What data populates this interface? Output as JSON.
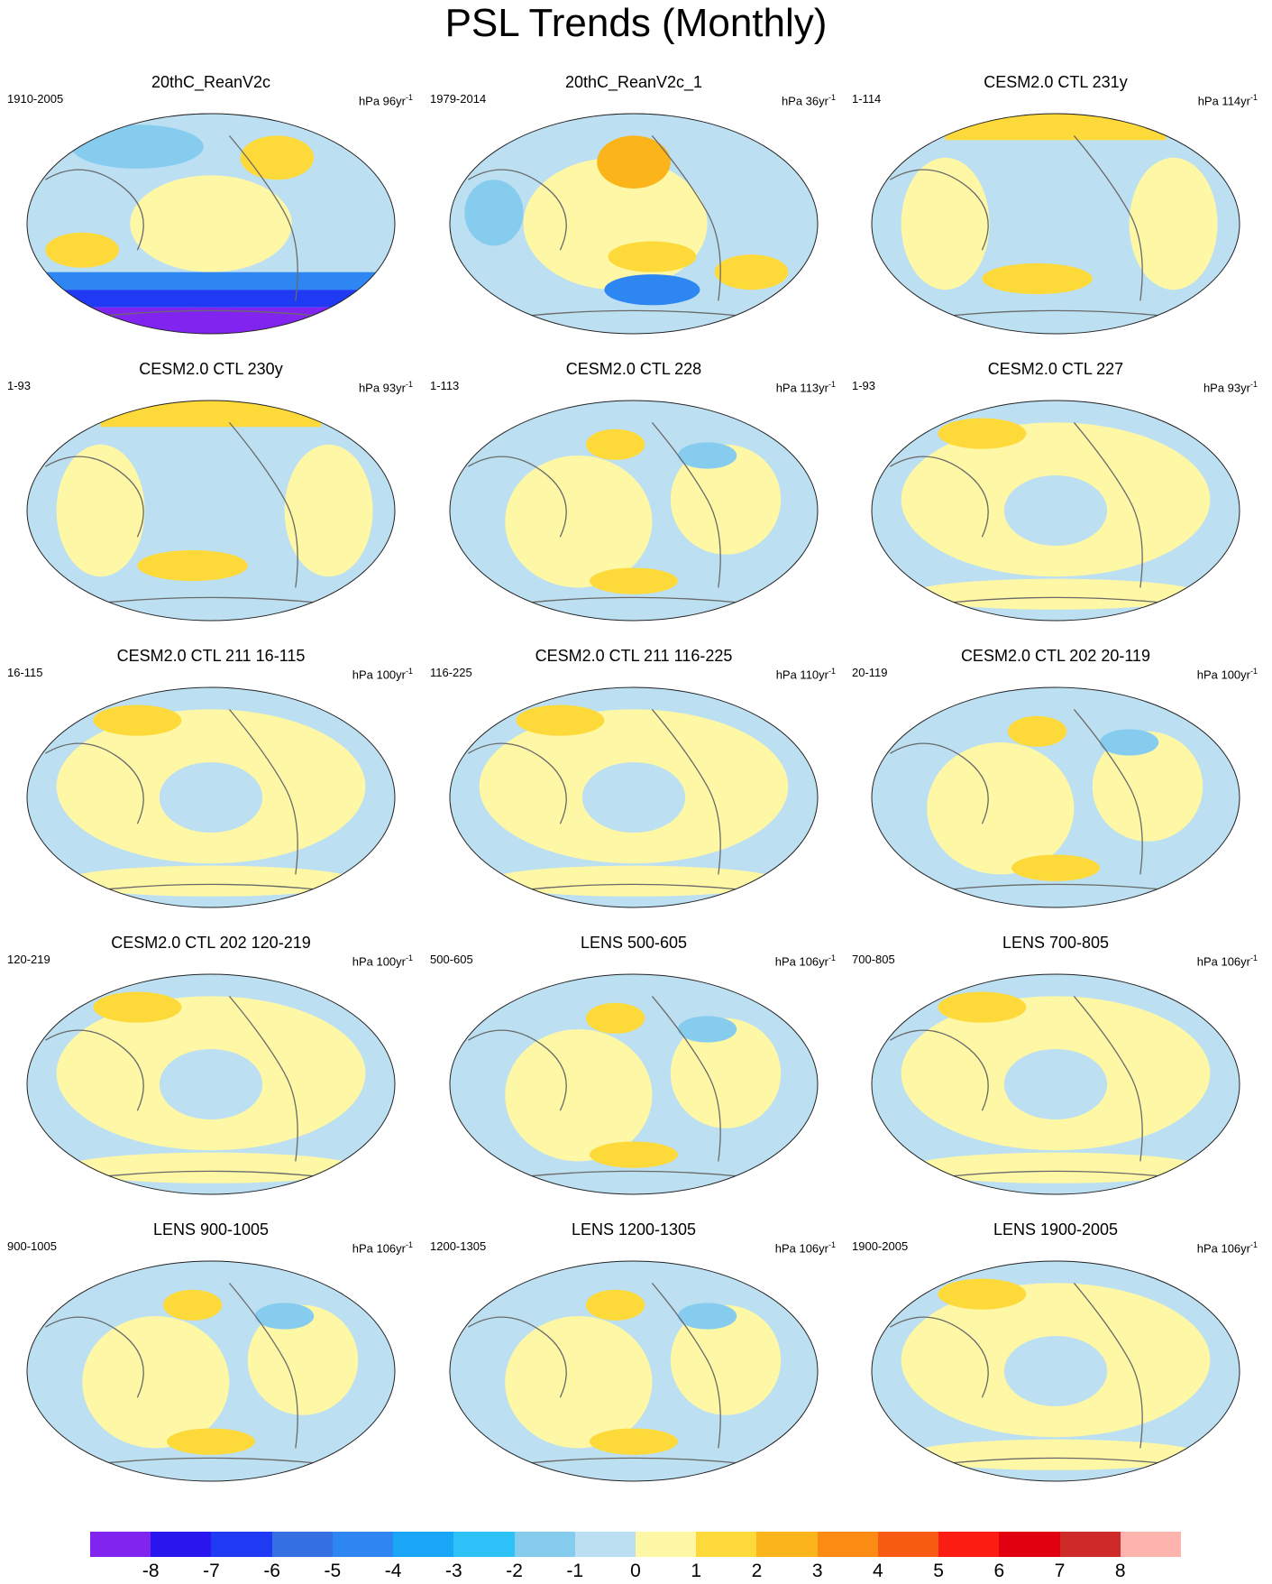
{
  "title": "PSL Trends (Monthly)",
  "panels": [
    {
      "title": "20thC_ReanV2c",
      "left": "1910-2005",
      "unit": "hPa 96yr",
      "exp": "-1",
      "regime": "rean"
    },
    {
      "title": "20thC_ReanV2c_1",
      "left": "1979-2014",
      "unit": "hPa 36yr",
      "exp": "-1",
      "regime": "rean2"
    },
    {
      "title": "CESM2.0 CTL 231y",
      "left": "1-114",
      "unit": "hPa 114yr",
      "exp": "-1",
      "regime": "blue"
    },
    {
      "title": "CESM2.0 CTL 230y",
      "left": "1-93",
      "unit": "hPa 93yr",
      "exp": "-1",
      "regime": "blue"
    },
    {
      "title": "CESM2.0 CTL 228",
      "left": "1-113",
      "unit": "hPa 113yr",
      "exp": "-1",
      "regime": "mixed"
    },
    {
      "title": "CESM2.0 CTL 227",
      "left": "1-93",
      "unit": "hPa 93yr",
      "exp": "-1",
      "regime": "yellow"
    },
    {
      "title": "CESM2.0 CTL 211 16-115",
      "left": "16-115",
      "unit": "hPa 100yr",
      "exp": "-1",
      "regime": "yellow"
    },
    {
      "title": "CESM2.0 CTL 211 116-225",
      "left": "116-225",
      "unit": "hPa 110yr",
      "exp": "-1",
      "regime": "yellow"
    },
    {
      "title": "CESM2.0 CTL 202 20-119",
      "left": "20-119",
      "unit": "hPa 100yr",
      "exp": "-1",
      "regime": "mixed"
    },
    {
      "title": "CESM2.0 CTL 202 120-219",
      "left": "120-219",
      "unit": "hPa 100yr",
      "exp": "-1",
      "regime": "yellow"
    },
    {
      "title": "LENS 500-605",
      "left": "500-605",
      "unit": "hPa 106yr",
      "exp": "-1",
      "regime": "mixed"
    },
    {
      "title": "LENS 700-805",
      "left": "700-805",
      "unit": "hPa 106yr",
      "exp": "-1",
      "regime": "yellow"
    },
    {
      "title": "LENS 900-1005",
      "left": "900-1005",
      "unit": "hPa 106yr",
      "exp": "-1",
      "regime": "mixed"
    },
    {
      "title": "LENS 1200-1305",
      "left": "1200-1305",
      "unit": "hPa 106yr",
      "exp": "-1",
      "regime": "mixed"
    },
    {
      "title": "LENS 1900-2005",
      "left": "1900-2005",
      "unit": "hPa 106yr",
      "exp": "-1",
      "regime": "yellow"
    }
  ],
  "colorbar": {
    "colors": [
      "#8224f0",
      "#2a16ee",
      "#1f3af2",
      "#3470e2",
      "#2e86f2",
      "#19a6f6",
      "#2fc2f8",
      "#86ccee",
      "#bce0f2",
      "#fdf7a6",
      "#fdd93a",
      "#fbb51a",
      "#fb8b12",
      "#f85c12",
      "#fb1c12",
      "#e1000f",
      "#cd2a28",
      "#fdb3ae"
    ],
    "labels": [
      "-8",
      "-7",
      "-6",
      "-5",
      "-4",
      "-3",
      "-2",
      "-1",
      "0",
      "1",
      "2",
      "3",
      "4",
      "5",
      "6",
      "7",
      "8"
    ]
  }
}
